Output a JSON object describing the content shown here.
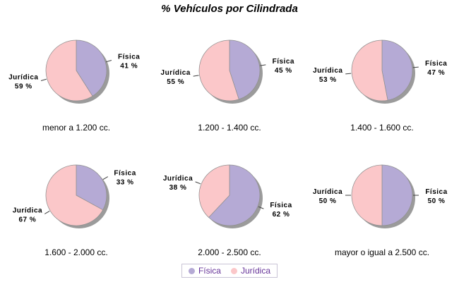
{
  "title": "% Vehículos por Cilindrada",
  "chart_data": {
    "type": "pie",
    "title": "% Vehículos por Cilindrada",
    "series_labels": [
      "Física",
      "Jurídica"
    ],
    "colors": [
      "#B5AAD5",
      "#FBC7C9"
    ],
    "shadow_color": "#9B9B9B",
    "slice_border_color": "#909090",
    "leader_line_color": "#404040",
    "unit": "%",
    "grid_layout": {
      "rows": 2,
      "cols": 3
    },
    "pies": [
      {
        "category": "menor a 1.200 cc.",
        "values": [
          {
            "label": "Física",
            "pct": 41,
            "pct_label": "41 %"
          },
          {
            "label": "Jurídica",
            "pct": 59,
            "pct_label": "59 %"
          }
        ]
      },
      {
        "category": "1.200 - 1.400 cc.",
        "values": [
          {
            "label": "Física",
            "pct": 45,
            "pct_label": "45 %"
          },
          {
            "label": "Jurídica",
            "pct": 55,
            "pct_label": "55 %"
          }
        ]
      },
      {
        "category": "1.400 - 1.600 cc.",
        "values": [
          {
            "label": "Física",
            "pct": 47,
            "pct_label": "47 %"
          },
          {
            "label": "Jurídica",
            "pct": 53,
            "pct_label": "53 %"
          }
        ]
      },
      {
        "category": "1.600 - 2.000 cc.",
        "values": [
          {
            "label": "Física",
            "pct": 33,
            "pct_label": "33 %"
          },
          {
            "label": "Jurídica",
            "pct": 67,
            "pct_label": "67 %"
          }
        ]
      },
      {
        "category": "2.000 - 2.500 cc.",
        "values": [
          {
            "label": "Física",
            "pct": 62,
            "pct_label": "62 %"
          },
          {
            "label": "Jurídica",
            "pct": 38,
            "pct_label": "38 %"
          }
        ]
      },
      {
        "category": "mayor o igual a 2.500 cc.",
        "values": [
          {
            "label": "Física",
            "pct": 50,
            "pct_label": "50 %"
          },
          {
            "label": "Jurídica",
            "pct": 50,
            "pct_label": "50 %"
          }
        ]
      }
    ],
    "legend": {
      "position": "bottom",
      "text_color": "#663399",
      "items": [
        {
          "label": "Física",
          "color": "#B5AAD5"
        },
        {
          "label": "Jurídica",
          "color": "#FBC7C9"
        }
      ]
    }
  }
}
